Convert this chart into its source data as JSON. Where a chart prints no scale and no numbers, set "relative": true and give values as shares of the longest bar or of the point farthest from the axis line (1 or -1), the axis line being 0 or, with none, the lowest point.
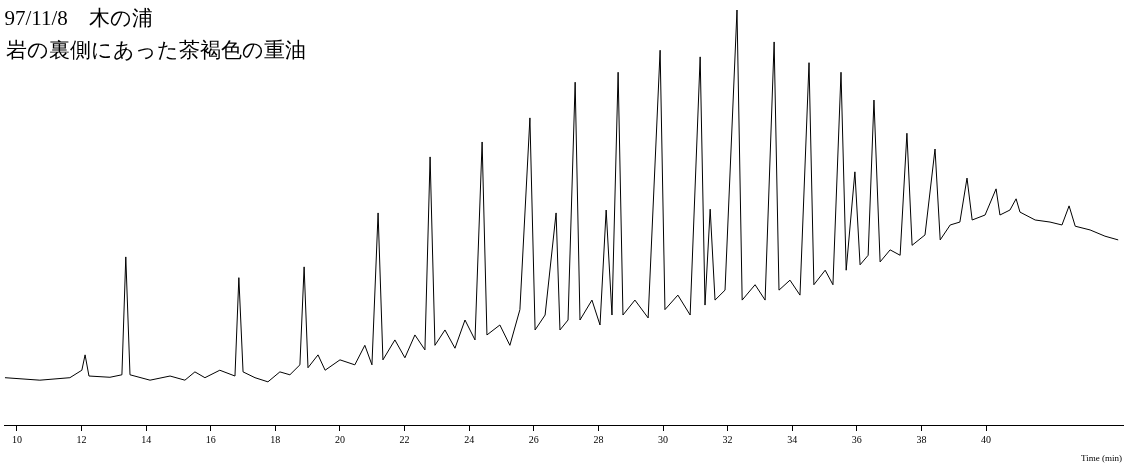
{
  "chart_data": {
    "type": "line",
    "title": "97/11/8　木の浦",
    "subtitle": "岩の裏側にあった茶褐色の重油",
    "xlabel": "Time (min)",
    "relative": true,
    "color": "#000000",
    "xlim": [
      9.6,
      44.27
    ],
    "xticks": [
      10,
      12,
      14,
      16,
      18,
      20,
      22,
      24,
      26,
      28,
      30,
      32,
      34,
      36,
      38,
      40
    ],
    "x": [
      9.63,
      10.71,
      11.64,
      12.01,
      12.11,
      12.23,
      12.88,
      13.25,
      13.37,
      13.5,
      14.12,
      14.74,
      15.2,
      15.51,
      15.82,
      16.28,
      16.75,
      16.87,
      17.0,
      17.37,
      17.77,
      18.14,
      18.45,
      18.76,
      18.89,
      19.01,
      19.32,
      19.54,
      20.0,
      20.46,
      20.77,
      20.99,
      21.18,
      21.33,
      21.7,
      22.01,
      22.32,
      22.63,
      22.79,
      22.94,
      23.25,
      23.56,
      23.87,
      24.18,
      24.4,
      24.55,
      24.95,
      25.26,
      25.57,
      25.88,
      26.04,
      26.35,
      26.69,
      26.81,
      27.06,
      27.28,
      27.43,
      27.8,
      28.05,
      28.24,
      28.42,
      28.61,
      28.76,
      29.13,
      29.54,
      29.91,
      30.06,
      30.46,
      30.84,
      31.15,
      31.3,
      31.46,
      31.61,
      31.92,
      32.29,
      32.45,
      32.85,
      33.16,
      33.44,
      33.59,
      33.93,
      34.24,
      34.52,
      34.67,
      35.02,
      35.26,
      35.51,
      35.67,
      35.94,
      36.1,
      36.35,
      36.53,
      36.72,
      37.03,
      37.34,
      37.55,
      37.71,
      38.11,
      38.42,
      38.58,
      38.89,
      39.19,
      39.41,
      39.57,
      39.97,
      40.31,
      40.43,
      40.74,
      40.93,
      41.05,
      41.52,
      41.98,
      42.35,
      42.57,
      42.76,
      43.22,
      43.68,
      44.09
    ],
    "values": [
      0.114,
      0.108,
      0.114,
      0.132,
      0.169,
      0.118,
      0.115,
      0.121,
      0.405,
      0.121,
      0.108,
      0.118,
      0.108,
      0.128,
      0.114,
      0.132,
      0.118,
      0.355,
      0.128,
      0.114,
      0.104,
      0.128,
      0.121,
      0.145,
      0.381,
      0.138,
      0.169,
      0.132,
      0.157,
      0.145,
      0.192,
      0.145,
      0.511,
      0.157,
      0.205,
      0.162,
      0.217,
      0.181,
      0.646,
      0.192,
      0.229,
      0.185,
      0.253,
      0.205,
      0.682,
      0.217,
      0.241,
      0.192,
      0.278,
      0.74,
      0.229,
      0.265,
      0.511,
      0.229,
      0.253,
      0.826,
      0.253,
      0.301,
      0.241,
      0.518,
      0.265,
      0.85,
      0.265,
      0.301,
      0.258,
      0.903,
      0.278,
      0.313,
      0.265,
      0.887,
      0.289,
      0.52,
      0.301,
      0.325,
      1,
      0.301,
      0.338,
      0.301,
      0.923,
      0.325,
      0.349,
      0.313,
      0.873,
      0.338,
      0.373,
      0.338,
      0.85,
      0.373,
      0.61,
      0.386,
      0.409,
      0.783,
      0.393,
      0.422,
      0.409,
      0.703,
      0.433,
      0.458,
      0.665,
      0.446,
      0.482,
      0.489,
      0.595,
      0.494,
      0.506,
      0.569,
      0.506,
      0.518,
      0.545,
      0.513,
      0.494,
      0.489,
      0.482,
      0.528,
      0.479,
      0.47,
      0.455,
      0.446
    ]
  }
}
